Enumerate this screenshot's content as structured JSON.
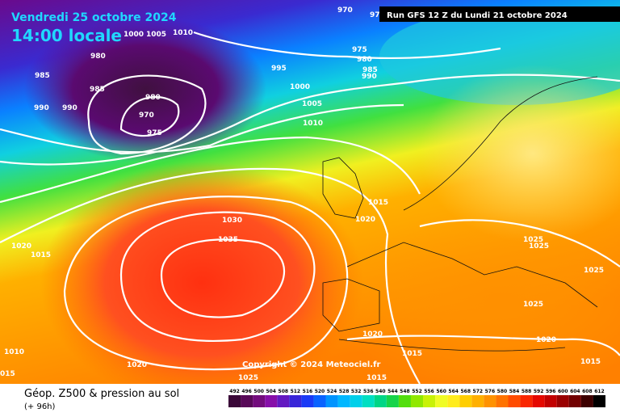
{
  "header": {
    "date": "Vendredi 25 octobre 2024",
    "time": "14:00 locale",
    "run": "Run GFS 12 Z du Lundi 21 octobre 2024"
  },
  "isobars": [
    "970",
    "97",
    "1000",
    "1005",
    "1010",
    "980",
    "975",
    "980",
    "985",
    "990",
    "995",
    "985",
    "985",
    "1000",
    "980",
    "990",
    "990",
    "970",
    "1005",
    "1010",
    "975",
    "1015",
    "1020",
    "1030",
    "1035",
    "1020",
    "1015",
    "1025",
    "1025",
    "1025",
    "1025",
    "1020",
    "1020",
    "1010",
    "1015",
    "1015",
    "1020",
    "015",
    "1025",
    "1015"
  ],
  "copyright": "Copyright © 2024 Meteociel.fr",
  "legend": {
    "title": "Géop. Z500 & pression au sol",
    "subtitle": "(+ 96h)",
    "scale": [
      "492",
      "496",
      "500",
      "504",
      "508",
      "512",
      "516",
      "520",
      "524",
      "528",
      "532",
      "536",
      "540",
      "544",
      "548",
      "552",
      "556",
      "560",
      "564",
      "568",
      "572",
      "576",
      "580",
      "584",
      "588",
      "592",
      "596",
      "600",
      "604",
      "608",
      "612"
    ]
  }
}
